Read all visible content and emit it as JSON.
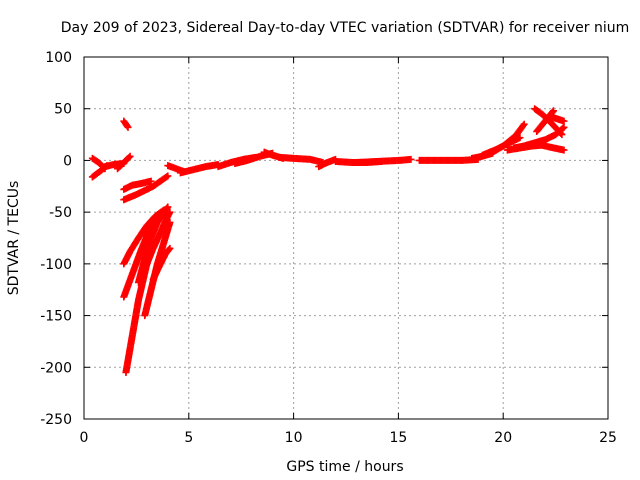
{
  "chart_data": {
    "type": "scatter",
    "title": "Day 209 of 2023, Sidereal Day-to-day VTEC variation (SDTVAR) for receiver nium",
    "xlabel": "GPS time / hours",
    "ylabel": "SDTVAR / TECUs",
    "xlim": [
      0,
      25
    ],
    "ylim": [
      -250,
      100
    ],
    "xticks": [
      0,
      5,
      10,
      15,
      20,
      25
    ],
    "yticks": [
      -250,
      -200,
      -150,
      -100,
      -50,
      0,
      50,
      100
    ],
    "grid": true,
    "marker": "+",
    "color": "#ff0000",
    "segments": [
      {
        "x": [
          0.4,
          0.7,
          1.0
        ],
        "y": [
          2,
          -2,
          -8
        ]
      },
      {
        "x": [
          0.4,
          0.8,
          1.1
        ],
        "y": [
          -16,
          -10,
          -5
        ]
      },
      {
        "x": [
          1.0,
          1.4,
          1.9
        ],
        "y": [
          -6,
          -4,
          -3
        ]
      },
      {
        "x": [
          1.6,
          2.0,
          2.2
        ],
        "y": [
          -8,
          0,
          4
        ]
      },
      {
        "x": [
          1.9,
          2.1
        ],
        "y": [
          38,
          32
        ]
      },
      {
        "x": [
          1.9,
          2.3,
          2.8,
          3.2
        ],
        "y": [
          -28,
          -24,
          -22,
          -20
        ]
      },
      {
        "x": [
          1.9,
          2.5,
          3.3,
          4.0
        ],
        "y": [
          -38,
          -33,
          -25,
          -15
        ]
      },
      {
        "x": [
          1.9,
          2.2,
          2.6,
          3.0,
          3.4,
          3.8
        ],
        "y": [
          -100,
          -88,
          -75,
          -63,
          -54,
          -48
        ]
      },
      {
        "x": [
          1.9,
          2.3,
          2.7,
          3.1,
          3.4
        ],
        "y": [
          -132,
          -110,
          -88,
          -68,
          -55
        ]
      },
      {
        "x": [
          2.0,
          2.3,
          2.6,
          3.0,
          3.3
        ],
        "y": [
          -205,
          -170,
          -135,
          -100,
          -80
        ]
      },
      {
        "x": [
          2.6,
          2.9,
          3.2,
          3.5,
          3.8,
          4.0
        ],
        "y": [
          -118,
          -95,
          -75,
          -60,
          -50,
          -45
        ]
      },
      {
        "x": [
          2.9,
          3.2,
          3.5,
          3.8,
          4.1
        ],
        "y": [
          -150,
          -125,
          -100,
          -80,
          -60
        ]
      },
      {
        "x": [
          3.0,
          3.3,
          3.6,
          3.9,
          4.1
        ],
        "y": [
          -100,
          -85,
          -72,
          -58,
          -50
        ]
      },
      {
        "x": [
          3.3,
          3.6,
          3.9,
          4.1
        ],
        "y": [
          -115,
          -102,
          -90,
          -85
        ]
      },
      {
        "x": [
          4.0,
          4.4,
          4.8
        ],
        "y": [
          -5,
          -8,
          -11
        ]
      },
      {
        "x": [
          4.6,
          5.2,
          5.8,
          6.4
        ],
        "y": [
          -12,
          -9,
          -6,
          -4
        ]
      },
      {
        "x": [
          6.4,
          7.0,
          7.6,
          8.2
        ],
        "y": [
          -6,
          -2,
          1,
          3
        ]
      },
      {
        "x": [
          7.2,
          7.8,
          8.4,
          9.0
        ],
        "y": [
          -3,
          0,
          4,
          7
        ]
      },
      {
        "x": [
          8.6,
          9.0,
          9.5
        ],
        "y": [
          8,
          5,
          2
        ]
      },
      {
        "x": [
          9.3,
          10.0,
          10.8,
          11.4
        ],
        "y": [
          3,
          2,
          1,
          -2
        ]
      },
      {
        "x": [
          11.2,
          11.6,
          12.0
        ],
        "y": [
          -6,
          -2,
          1
        ]
      },
      {
        "x": [
          12.0,
          12.8,
          13.5,
          14.2
        ],
        "y": [
          -1,
          -2,
          -2,
          -1
        ]
      },
      {
        "x": [
          13.0,
          14.0,
          15.0,
          15.6
        ],
        "y": [
          -2,
          -1,
          0,
          1
        ]
      },
      {
        "x": [
          16.0,
          17.0,
          18.0,
          18.8
        ],
        "y": [
          0,
          0,
          0,
          1
        ]
      },
      {
        "x": [
          18.5,
          19.0,
          19.5
        ],
        "y": [
          2,
          4,
          7
        ]
      },
      {
        "x": [
          19.0,
          19.6,
          20.2,
          20.8
        ],
        "y": [
          5,
          10,
          16,
          22
        ]
      },
      {
        "x": [
          19.5,
          20.0,
          20.6,
          21.0
        ],
        "y": [
          8,
          14,
          24,
          35
        ]
      },
      {
        "x": [
          20.2,
          20.8,
          21.4,
          22.0
        ],
        "y": [
          10,
          12,
          14,
          15
        ]
      },
      {
        "x": [
          20.5,
          21.0,
          21.5,
          22.0,
          22.5,
          22.9
        ],
        "y": [
          12,
          14,
          17,
          20,
          25,
          32
        ]
      },
      {
        "x": [
          21.5,
          21.9,
          22.3,
          22.8
        ],
        "y": [
          50,
          44,
          36,
          25
        ]
      },
      {
        "x": [
          21.6,
          22.0,
          22.4
        ],
        "y": [
          28,
          38,
          48
        ]
      },
      {
        "x": [
          21.0,
          21.6,
          22.2,
          22.9
        ],
        "y": [
          14,
          16,
          13,
          10
        ]
      },
      {
        "x": [
          22.3,
          22.6,
          22.9
        ],
        "y": [
          42,
          40,
          38
        ]
      }
    ]
  }
}
